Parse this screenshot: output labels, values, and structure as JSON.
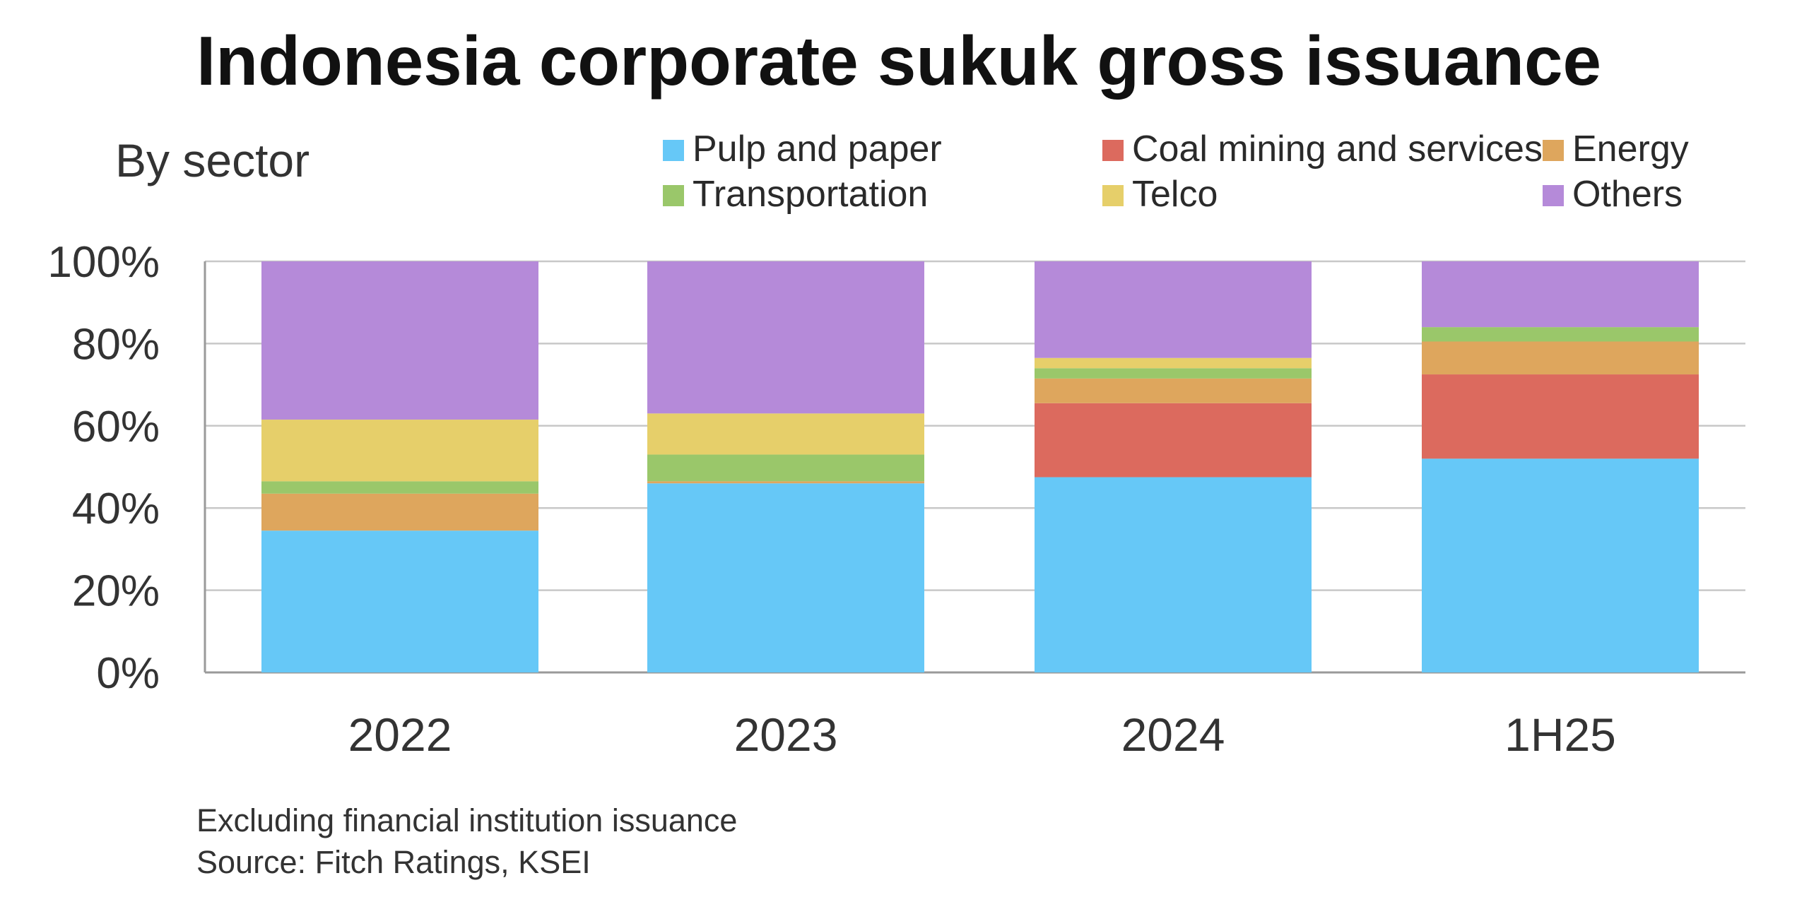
{
  "title": "Indonesia corporate sukuk gross issuance",
  "subtitle": "By sector",
  "footnote": "Excluding financial institution issuance",
  "source": "Source: Fitch Ratings, KSEI",
  "chart_data": {
    "type": "bar",
    "stacked": true,
    "title": "Indonesia corporate sukuk gross issuance",
    "subtitle": "By sector",
    "xlabel": "",
    "ylabel": "",
    "ylim": [
      0,
      100
    ],
    "y_ticks": [
      "0%",
      "20%",
      "40%",
      "60%",
      "80%",
      "100%"
    ],
    "y_tick_values": [
      0,
      20,
      40,
      60,
      80,
      100
    ],
    "grid": true,
    "legend_position": "top",
    "categories": [
      "2022",
      "2023",
      "2024",
      "1H25"
    ],
    "series": [
      {
        "name": "Pulp and paper",
        "color": "#66c8f7",
        "values": [
          34.5,
          46,
          47.5,
          52
        ]
      },
      {
        "name": "Coal mining and services",
        "color": "#dc6a5e",
        "values": [
          0,
          0,
          18,
          20.5
        ]
      },
      {
        "name": "Energy",
        "color": "#dea65d",
        "values": [
          9,
          0.5,
          6,
          8
        ]
      },
      {
        "name": "Transportation",
        "color": "#9ac76a",
        "values": [
          3,
          6.5,
          2.5,
          3.5
        ]
      },
      {
        "name": "Telco",
        "color": "#e6cf6a",
        "values": [
          15,
          10,
          2.5,
          0
        ]
      },
      {
        "name": "Others",
        "color": "#b58ad9",
        "values": [
          38.5,
          37,
          23.5,
          16
        ]
      }
    ],
    "legend_order": [
      "Pulp and paper",
      "Coal mining and services",
      "Energy",
      "Transportation",
      "Telco",
      "Others"
    ]
  }
}
